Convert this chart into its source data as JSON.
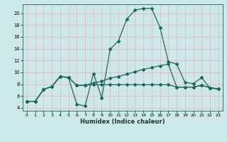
{
  "bg_color": "#cde8e8",
  "grid_color": "#e8b8b8",
  "line_color": "#1a6b5a",
  "xlabel": "Humidex (Indice chaleur)",
  "xlim": [
    -0.5,
    23.5
  ],
  "ylim": [
    3.5,
    21.5
  ],
  "yticks": [
    4,
    6,
    8,
    10,
    12,
    14,
    16,
    18,
    20
  ],
  "xticks": [
    0,
    1,
    2,
    3,
    4,
    5,
    6,
    7,
    8,
    9,
    10,
    11,
    12,
    13,
    14,
    15,
    16,
    17,
    18,
    19,
    20,
    21,
    22,
    23
  ],
  "series1_x": [
    0,
    1,
    2,
    3,
    4,
    5,
    6,
    7,
    8,
    9,
    10,
    11,
    12,
    13,
    14,
    15,
    16,
    17,
    18,
    19,
    20,
    21,
    22,
    23
  ],
  "series1_y": [
    5.1,
    5.1,
    7.1,
    7.6,
    9.3,
    9.1,
    4.6,
    4.3,
    9.8,
    5.7,
    13.9,
    15.3,
    19.0,
    20.5,
    20.8,
    20.8,
    17.6,
    11.8,
    11.4,
    8.3,
    8.1,
    9.1,
    7.3,
    7.2
  ],
  "series2_x": [
    0,
    1,
    2,
    3,
    4,
    5,
    6,
    7,
    8,
    9,
    10,
    11,
    12,
    13,
    14,
    15,
    16,
    17,
    18,
    19,
    20,
    21,
    22,
    23
  ],
  "series2_y": [
    5.1,
    5.1,
    7.1,
    7.6,
    9.3,
    9.1,
    7.8,
    7.8,
    8.2,
    8.5,
    9.0,
    9.3,
    9.7,
    10.1,
    10.5,
    10.8,
    11.1,
    11.4,
    7.5,
    7.5,
    7.5,
    7.8,
    7.4,
    7.2
  ],
  "series3_x": [
    0,
    1,
    2,
    3,
    4,
    5,
    6,
    7,
    8,
    9,
    10,
    11,
    12,
    13,
    14,
    15,
    16,
    17,
    18,
    19,
    20,
    21,
    22,
    23
  ],
  "series3_y": [
    5.1,
    5.1,
    7.1,
    7.6,
    9.3,
    9.1,
    7.8,
    7.8,
    7.9,
    7.9,
    7.9,
    7.9,
    7.9,
    7.9,
    7.9,
    7.9,
    7.9,
    7.9,
    7.5,
    7.5,
    7.5,
    7.8,
    7.4,
    7.2
  ]
}
